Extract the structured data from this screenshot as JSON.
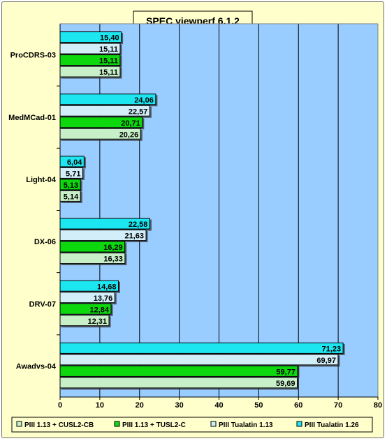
{
  "chart_data": {
    "type": "bar",
    "orientation": "horizontal",
    "title": "SPEC viewperf 6.1.2",
    "categories": [
      "ProCDRS-03",
      "MedMCad-01",
      "Light-04",
      "DX-06",
      "DRV-07",
      "Awadvs-04"
    ],
    "series": [
      {
        "name": "PIII 1.13 + CUSL2-CB",
        "color": "#c8f0c8",
        "values": [
          15.11,
          20.26,
          5.14,
          16.33,
          12.31,
          59.69
        ],
        "labels": [
          "15,11",
          "20,26",
          "5,14",
          "16,33",
          "12,31",
          "59,69"
        ]
      },
      {
        "name": "PIII 1.13 + TUSL2-C",
        "color": "#11d811",
        "values": [
          15.11,
          20.71,
          5.13,
          16.29,
          12.84,
          59.77
        ],
        "labels": [
          "15,11",
          "20,71",
          "5,13",
          "16,29",
          "12,84",
          "59,77"
        ]
      },
      {
        "name": "PIII Tualatin 1.13",
        "color": "#d2eef8",
        "values": [
          15.11,
          22.57,
          5.71,
          21.63,
          13.76,
          69.97
        ],
        "labels": [
          "15,11",
          "22,57",
          "5,71",
          "21,63",
          "13,76",
          "69,97"
        ]
      },
      {
        "name": "PIII Tualatin 1.26",
        "color": "#1fe6f0",
        "values": [
          15.4,
          24.06,
          6.04,
          22.58,
          14.68,
          71.23
        ],
        "labels": [
          "15,40",
          "24,06",
          "6,04",
          "22,58",
          "14,68",
          "71,23"
        ]
      }
    ],
    "xlim": [
      0,
      80
    ],
    "xticks": [
      "0",
      "10",
      "20",
      "30",
      "40",
      "50",
      "60",
      "70",
      "80"
    ],
    "grid": true,
    "plot_background": "#99ccff",
    "chart_background": "#ffffcc",
    "legend_position": "bottom"
  }
}
